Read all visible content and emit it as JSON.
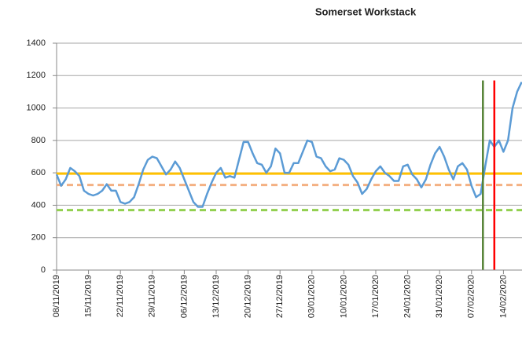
{
  "chart_data": {
    "type": "line",
    "title": "Somerset Workstack",
    "categories": [
      "08/11/2019",
      null,
      null,
      null,
      null,
      null,
      null,
      "15/11/2019",
      null,
      null,
      null,
      null,
      null,
      null,
      "22/11/2019",
      null,
      null,
      null,
      null,
      null,
      null,
      "29/11/2019",
      null,
      null,
      null,
      null,
      null,
      null,
      "06/12/2019",
      null,
      null,
      null,
      null,
      null,
      null,
      "13/12/2019",
      null,
      null,
      null,
      null,
      null,
      null,
      "20/12/2019",
      null,
      null,
      null,
      null,
      null,
      null,
      "27/12/2019",
      null,
      null,
      null,
      null,
      null,
      null,
      "03/01/2020",
      null,
      null,
      null,
      null,
      null,
      null,
      "10/01/2020",
      null,
      null,
      null,
      null,
      null,
      null,
      "17/01/2020",
      null,
      null,
      null,
      null,
      null,
      null,
      "24/01/2020",
      null,
      null,
      null,
      null,
      null,
      null,
      "31/01/2020",
      null,
      null,
      null,
      null,
      null,
      null,
      "07/02/2020",
      null,
      null,
      null,
      null,
      null,
      null,
      "14/02/2020",
      null,
      null,
      null,
      null
    ],
    "series": [
      {
        "color": "#5b9bd5",
        "values": [
          590,
          520,
          560,
          630,
          610,
          580,
          490,
          470,
          460,
          470,
          490,
          530,
          490,
          490,
          420,
          410,
          420,
          450,
          530,
          620,
          680,
          700,
          690,
          640,
          590,
          620,
          670,
          630,
          560,
          490,
          420,
          390,
          390,
          470,
          540,
          600,
          630,
          570,
          580,
          570,
          680,
          790,
          790,
          720,
          660,
          650,
          600,
          640,
          750,
          720,
          600,
          600,
          660,
          660,
          730,
          800,
          790,
          700,
          690,
          640,
          610,
          620,
          690,
          680,
          650,
          580,
          540,
          470,
          500,
          560,
          610,
          640,
          600,
          580,
          550,
          550,
          640,
          650,
          590,
          560,
          510,
          560,
          650,
          720,
          760,
          700,
          620,
          560,
          640,
          660,
          620,
          520,
          450,
          470,
          640,
          800,
          760,
          800,
          730,
          800,
          1000,
          1100,
          1160
        ]
      }
    ],
    "reference_lines": [
      {
        "value": 595,
        "color": "#ffc000",
        "dashed": false
      },
      {
        "value": 525,
        "color": "#f4b183",
        "dashed": true
      },
      {
        "value": 370,
        "color": "#92d050",
        "dashed": true
      }
    ],
    "vertical_lines": [
      {
        "x": 93.5,
        "value": 1170,
        "color": "#548235"
      },
      {
        "x": 96,
        "value": 1170,
        "color": "#ff0000"
      }
    ],
    "ylim": [
      0,
      1400
    ],
    "yticks": [
      0,
      200,
      400,
      600,
      800,
      1000,
      1200,
      1400
    ],
    "grid": true
  }
}
